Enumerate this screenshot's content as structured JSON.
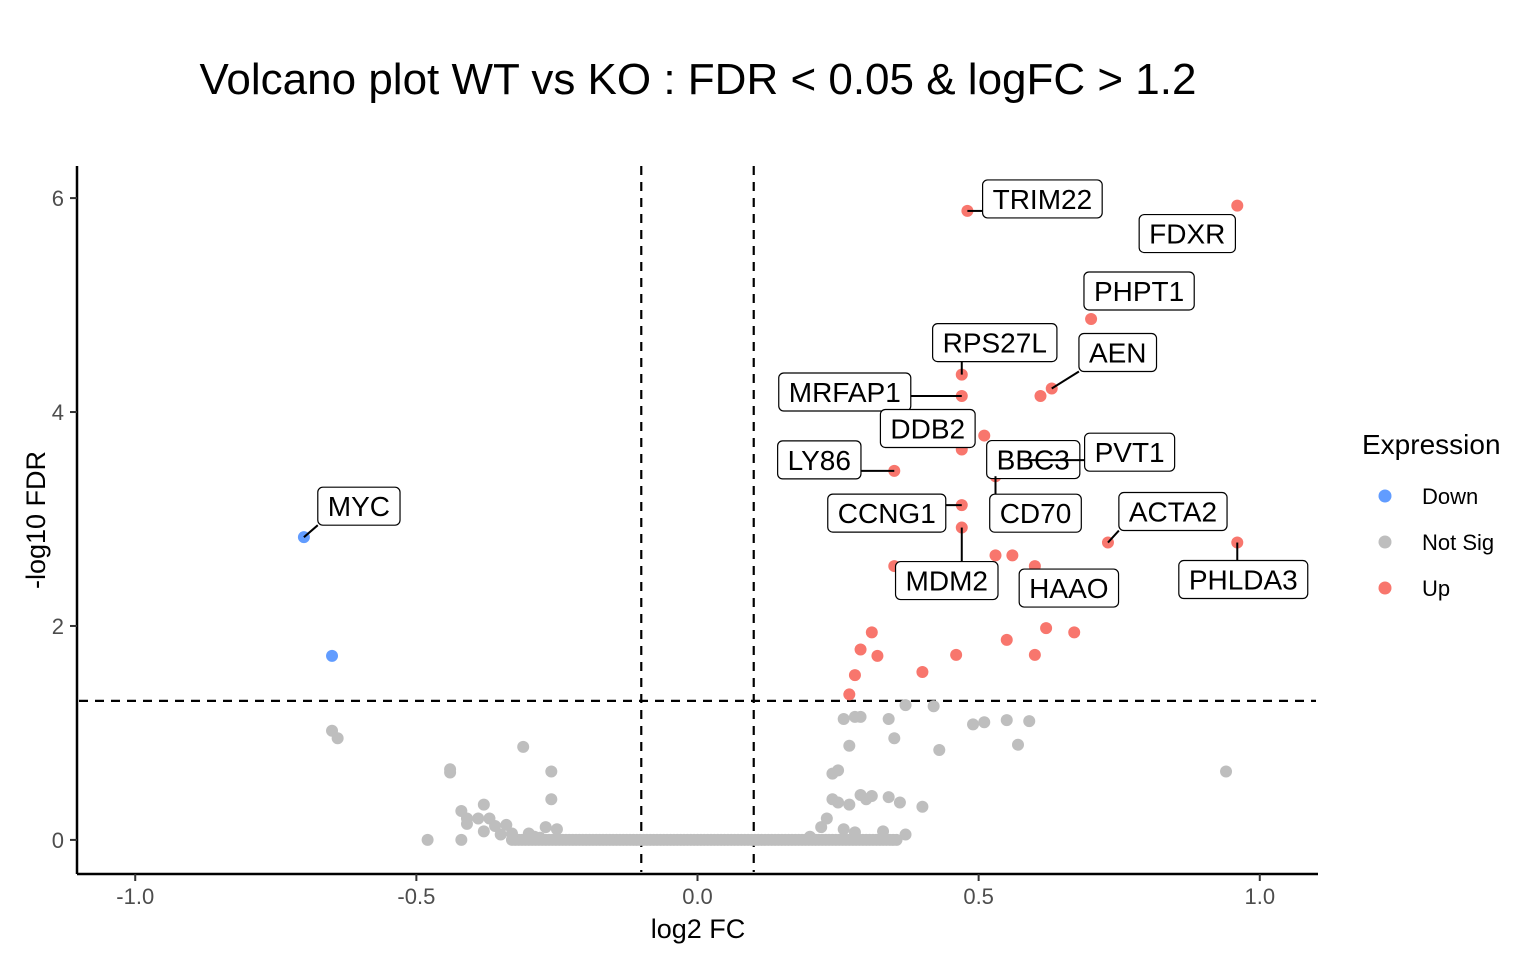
{
  "chart_data": {
    "type": "scatter",
    "title": "Volcano plot WT vs KO : FDR < 0.05 & logFC > 1.2",
    "xlabel": "log2 FC",
    "ylabel": "-log10 FDR",
    "xlim": [
      -1.1,
      1.1
    ],
    "ylim": [
      -0.3,
      6.3
    ],
    "x_ticks": [
      -1.0,
      -0.5,
      0.0,
      0.5,
      1.0
    ],
    "x_tick_labels": [
      "-1.0",
      "-0.5",
      "0.0",
      "0.5",
      "1.0"
    ],
    "y_ticks": [
      0,
      2,
      4,
      6
    ],
    "y_tick_labels": [
      "0",
      "2",
      "4",
      "6"
    ],
    "grid": false,
    "thresholds": {
      "vlines": [
        -0.1,
        0.1
      ],
      "hline": 1.3
    },
    "legend": {
      "title": "Expression",
      "position": "right",
      "entries": [
        {
          "label": "Down",
          "color": "#619CFF"
        },
        {
          "label": "Not Sig",
          "color": "#BEBEBE"
        },
        {
          "label": "Up",
          "color": "#F8766D"
        }
      ]
    },
    "series": [
      {
        "name": "Down",
        "color": "#619CFF",
        "points": [
          {
            "x": -0.7,
            "y": 2.83,
            "label": "MYC"
          },
          {
            "x": -0.65,
            "y": 1.72
          }
        ]
      },
      {
        "name": "Up",
        "color": "#F8766D",
        "points": [
          {
            "x": 0.48,
            "y": 5.88,
            "label": "TRIM22"
          },
          {
            "x": 0.96,
            "y": 5.93,
            "label": "FDXR"
          },
          {
            "x": 0.7,
            "y": 4.87,
            "label": "PHPT1"
          },
          {
            "x": 0.47,
            "y": 4.35,
            "label": "RPS27L"
          },
          {
            "x": 0.63,
            "y": 4.22,
            "label": "AEN"
          },
          {
            "x": 0.47,
            "y": 4.15,
            "label": "MRFAP1"
          },
          {
            "x": 0.61,
            "y": 4.15
          },
          {
            "x": 0.51,
            "y": 3.78,
            "label": "BBC3"
          },
          {
            "x": 0.58,
            "y": 3.55,
            "label": "PVT1"
          },
          {
            "x": 0.35,
            "y": 3.45,
            "label": "LY86"
          },
          {
            "x": 0.47,
            "y": 3.65,
            "label": "DDB2"
          },
          {
            "x": 0.53,
            "y": 3.4,
            "label": "CD70"
          },
          {
            "x": 0.47,
            "y": 3.13,
            "label": "CCNG1"
          },
          {
            "x": 0.47,
            "y": 2.92,
            "label": "MDM2"
          },
          {
            "x": 0.73,
            "y": 2.78,
            "label": "ACTA2"
          },
          {
            "x": 0.96,
            "y": 2.78,
            "label": "PHLDA3"
          },
          {
            "x": 0.6,
            "y": 2.56,
            "label": "HAAO"
          },
          {
            "x": 0.53,
            "y": 2.66
          },
          {
            "x": 0.56,
            "y": 2.66
          },
          {
            "x": 0.35,
            "y": 2.56
          },
          {
            "x": 0.31,
            "y": 1.94
          },
          {
            "x": 0.29,
            "y": 1.78
          },
          {
            "x": 0.32,
            "y": 1.72
          },
          {
            "x": 0.28,
            "y": 1.54
          },
          {
            "x": 0.27,
            "y": 1.36
          },
          {
            "x": 0.4,
            "y": 1.57
          },
          {
            "x": 0.46,
            "y": 1.73
          },
          {
            "x": 0.55,
            "y": 1.87
          },
          {
            "x": 0.62,
            "y": 1.98
          },
          {
            "x": 0.67,
            "y": 1.94
          },
          {
            "x": 0.6,
            "y": 1.73
          }
        ]
      },
      {
        "name": "Not Sig",
        "color": "#BEBEBE",
        "points": [
          {
            "x": -0.65,
            "y": 1.02
          },
          {
            "x": -0.64,
            "y": 0.95
          },
          {
            "x": -0.48,
            "y": 0.0
          },
          {
            "x": -0.44,
            "y": 0.66
          },
          {
            "x": -0.44,
            "y": 0.63
          },
          {
            "x": -0.42,
            "y": 0.27
          },
          {
            "x": -0.42,
            "y": 0.0
          },
          {
            "x": -0.41,
            "y": 0.2
          },
          {
            "x": -0.41,
            "y": 0.15
          },
          {
            "x": -0.39,
            "y": 0.2
          },
          {
            "x": -0.38,
            "y": 0.33
          },
          {
            "x": -0.38,
            "y": 0.08
          },
          {
            "x": -0.37,
            "y": 0.2
          },
          {
            "x": -0.36,
            "y": 0.13
          },
          {
            "x": -0.35,
            "y": 0.05
          },
          {
            "x": -0.34,
            "y": 0.14
          },
          {
            "x": -0.33,
            "y": 0.06
          },
          {
            "x": -0.31,
            "y": 0.87
          },
          {
            "x": -0.3,
            "y": 0.06
          },
          {
            "x": -0.29,
            "y": 0.03
          },
          {
            "x": -0.28,
            "y": 0.02
          },
          {
            "x": -0.27,
            "y": 0.12
          },
          {
            "x": -0.26,
            "y": 0.64
          },
          {
            "x": -0.26,
            "y": 0.38
          },
          {
            "x": -0.25,
            "y": 0.1
          },
          {
            "x": 0.2,
            "y": 0.03
          },
          {
            "x": 0.22,
            "y": 0.12
          },
          {
            "x": 0.23,
            "y": 0.2
          },
          {
            "x": 0.24,
            "y": 0.38
          },
          {
            "x": 0.24,
            "y": 0.62
          },
          {
            "x": 0.25,
            "y": 0.65
          },
          {
            "x": 0.25,
            "y": 0.35
          },
          {
            "x": 0.26,
            "y": 0.1
          },
          {
            "x": 0.26,
            "y": 1.13
          },
          {
            "x": 0.27,
            "y": 0.88
          },
          {
            "x": 0.27,
            "y": 0.33
          },
          {
            "x": 0.28,
            "y": 1.15
          },
          {
            "x": 0.28,
            "y": 0.07
          },
          {
            "x": 0.29,
            "y": 1.15
          },
          {
            "x": 0.29,
            "y": 0.42
          },
          {
            "x": 0.3,
            "y": 0.38
          },
          {
            "x": 0.31,
            "y": 0.41
          },
          {
            "x": 0.33,
            "y": 0.08
          },
          {
            "x": 0.34,
            "y": 1.13
          },
          {
            "x": 0.34,
            "y": 0.4
          },
          {
            "x": 0.35,
            "y": 0.95
          },
          {
            "x": 0.36,
            "y": 0.35
          },
          {
            "x": 0.37,
            "y": 1.26
          },
          {
            "x": 0.37,
            "y": 0.05
          },
          {
            "x": 0.4,
            "y": 0.31
          },
          {
            "x": 0.42,
            "y": 1.25
          },
          {
            "x": 0.43,
            "y": 0.84
          },
          {
            "x": 0.49,
            "y": 1.08
          },
          {
            "x": 0.51,
            "y": 1.1
          },
          {
            "x": 0.55,
            "y": 1.12
          },
          {
            "x": 0.57,
            "y": 0.89
          },
          {
            "x": 0.59,
            "y": 1.11
          },
          {
            "x": 0.94,
            "y": 0.64
          }
        ]
      }
    ]
  }
}
